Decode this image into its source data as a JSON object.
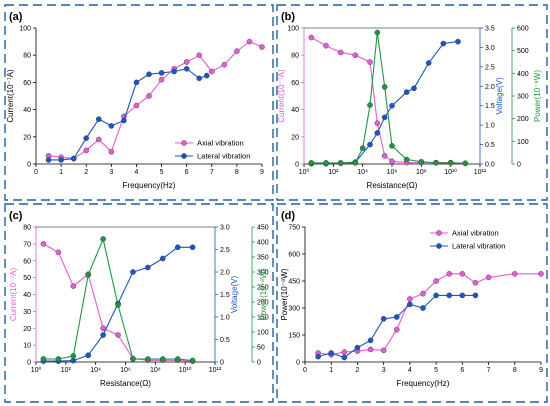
{
  "colors": {
    "pink": "#e85ad8",
    "blue": "#1a56c8",
    "green": "#1a9a40",
    "border": "#1f5fa8"
  },
  "chart_data": [
    {
      "panel": "(a)",
      "type": "line",
      "xlabel": "Frequency(Hz)",
      "ylabel": "Current(10⁻⁷A)",
      "xlim": [
        0,
        9
      ],
      "ylim": [
        0,
        100
      ],
      "xticks": [
        "0",
        "1",
        "2",
        "3",
        "4",
        "5",
        "6",
        "7",
        "8",
        "9"
      ],
      "yticks": [
        "0",
        "20",
        "40",
        "60",
        "80",
        "100"
      ],
      "legend": "bottom-right",
      "series": [
        {
          "name": "Axial vibration",
          "color": "#e85ad8",
          "x": [
            0.5,
            1,
            1.5,
            2,
            2.5,
            3,
            3.5,
            4,
            4.5,
            5,
            5.5,
            6,
            6.5,
            7,
            7.5,
            8,
            8.5,
            9
          ],
          "y": [
            6,
            5,
            4,
            10,
            18,
            9,
            35,
            43,
            50,
            62,
            70,
            75,
            80,
            68,
            73,
            83,
            90,
            86
          ]
        },
        {
          "name": "Lateral vibration",
          "color": "#1a56c8",
          "x": [
            0.5,
            1,
            1.5,
            2,
            2.5,
            3,
            3.5,
            4,
            4.5,
            5,
            5.5,
            6,
            6.5,
            6.8
          ],
          "y": [
            3,
            3,
            4,
            19,
            33,
            28,
            32,
            60,
            66,
            67,
            68,
            70,
            63,
            65
          ]
        }
      ]
    },
    {
      "panel": "(b)",
      "type": "line",
      "xlabel": "Resistance(Ω)",
      "ylabel_left": "Current(10⁻⁷A)",
      "ylabel_right1": "Voltage(V)",
      "ylabel_right2": "Power(10⁻⁸W)",
      "xlim_log": [
        0,
        12
      ],
      "xticks": [
        "10⁰",
        "10²",
        "10⁴",
        "10⁶",
        "10⁸",
        "10¹⁰",
        "10¹²"
      ],
      "ylim_left": [
        0,
        100
      ],
      "yticks_left": [
        "0",
        "20",
        "40",
        "60",
        "80",
        "100"
      ],
      "ylim_right1": [
        0,
        3.5
      ],
      "yticks_right1": [
        "0.0",
        "0.5",
        "1.0",
        "1.5",
        "2.0",
        "2.5",
        "3.0",
        "3.5"
      ],
      "ylim_right2": [
        0,
        600
      ],
      "yticks_right2": [
        "0",
        "100",
        "200",
        "300",
        "400",
        "500",
        "600"
      ],
      "series": [
        {
          "axis": "left",
          "color": "#e85ad8",
          "x": [
            0.5,
            1.5,
            2.5,
            3.5,
            4.5,
            5.0,
            5.5,
            6.0,
            7.0,
            8.0,
            9.0,
            10.0,
            11.0
          ],
          "y": [
            93,
            87,
            82,
            80,
            75,
            30,
            6,
            2,
            1,
            1,
            1,
            1,
            0.5
          ]
        },
        {
          "axis": "right1",
          "color": "#1a56c8",
          "x": [
            0.5,
            1.5,
            2.5,
            3.5,
            4.5,
            5.0,
            5.5,
            6.0,
            7.0,
            7.5,
            8.5,
            9.5,
            10.5
          ],
          "y": [
            0.01,
            0.01,
            0.02,
            0.05,
            0.5,
            0.8,
            1.2,
            1.5,
            1.85,
            1.95,
            2.6,
            3.1,
            3.15
          ]
        },
        {
          "axis": "right2",
          "color": "#1a9a40",
          "x": [
            0.5,
            1.5,
            2.5,
            3.5,
            4.0,
            4.5,
            5.0,
            5.5,
            6.0,
            7.0,
            8.0,
            9.0,
            10.0,
            11.0
          ],
          "y": [
            5,
            5,
            5,
            5,
            70,
            260,
            580,
            340,
            80,
            20,
            10,
            5,
            5,
            3
          ]
        }
      ]
    },
    {
      "panel": "(c)",
      "type": "line",
      "xlabel": "Resistance(Ω)",
      "ylabel_left": "Current(10⁻⁷A)",
      "ylabel_right1": "Voltage(V)",
      "ylabel_right2": "Power(10⁻⁸W)",
      "xlim_log": [
        0,
        12
      ],
      "xticks": [
        "10⁰",
        "10²",
        "10⁴",
        "10⁶",
        "10⁸",
        "10¹⁰",
        "10¹²"
      ],
      "ylim_left": [
        0,
        80
      ],
      "yticks_left": [
        "0",
        "10",
        "20",
        "30",
        "40",
        "50",
        "60",
        "70",
        "80"
      ],
      "ylim_right1": [
        0,
        3
      ],
      "yticks_right1": [
        "0",
        "0.5",
        "1.0",
        "1.5",
        "2.0",
        "2.5",
        "3.0"
      ],
      "ylim_right2": [
        0,
        450
      ],
      "yticks_right2": [
        "0",
        "50",
        "100",
        "150",
        "200",
        "250",
        "300",
        "350",
        "400",
        "450"
      ],
      "series": [
        {
          "axis": "left",
          "color": "#e85ad8",
          "x": [
            0.5,
            1.5,
            2.5,
            3.5,
            4.5,
            5.5,
            6.5,
            7.5,
            8.5,
            9.5,
            10.5
          ],
          "y": [
            70,
            65,
            45,
            52,
            20,
            16,
            2,
            1,
            1,
            1,
            0.5
          ]
        },
        {
          "axis": "right1",
          "color": "#1a56c8",
          "x": [
            0.5,
            1.5,
            2.5,
            3.5,
            4.5,
            5.5,
            6.5,
            7.5,
            8.5,
            9.5,
            10.5
          ],
          "y": [
            0.02,
            0.02,
            0.03,
            0.15,
            0.6,
            1.3,
            2.0,
            2.1,
            2.3,
            2.55,
            2.55
          ]
        },
        {
          "axis": "right2",
          "color": "#1a9a40",
          "x": [
            0.5,
            1.5,
            2.5,
            3.5,
            4.5,
            5.5,
            6.5,
            7.5,
            8.5,
            9.5,
            10.5
          ],
          "y": [
            10,
            10,
            20,
            290,
            410,
            190,
            10,
            10,
            10,
            10,
            5
          ]
        }
      ]
    },
    {
      "panel": "(d)",
      "type": "line",
      "xlabel": "Frequency(Hz)",
      "ylabel": "Power(10⁻⁸W)",
      "xlim": [
        0,
        9
      ],
      "ylim": [
        0,
        750
      ],
      "xticks": [
        "0",
        "1",
        "2",
        "3",
        "4",
        "5",
        "6",
        "7",
        "8",
        "9"
      ],
      "yticks": [
        "0",
        "150",
        "300",
        "450",
        "600",
        "750"
      ],
      "legend": "top-left",
      "series": [
        {
          "name": "Axial vibration",
          "color": "#e85ad8",
          "x": [
            0.5,
            1,
            1.5,
            2,
            2.5,
            3,
            3.5,
            4,
            4.5,
            5,
            5.5,
            6,
            6.5,
            7,
            8,
            9
          ],
          "y": [
            50,
            40,
            55,
            60,
            70,
            65,
            180,
            350,
            380,
            450,
            490,
            490,
            440,
            470,
            490,
            490
          ]
        },
        {
          "name": "Lateral vibration",
          "color": "#1a56c8",
          "x": [
            0.5,
            1,
            1.5,
            2,
            2.5,
            3,
            3.5,
            4,
            4.5,
            5,
            5.5,
            6,
            6.5
          ],
          "y": [
            30,
            50,
            25,
            80,
            120,
            240,
            250,
            320,
            300,
            370,
            370,
            370,
            370
          ]
        }
      ]
    }
  ]
}
